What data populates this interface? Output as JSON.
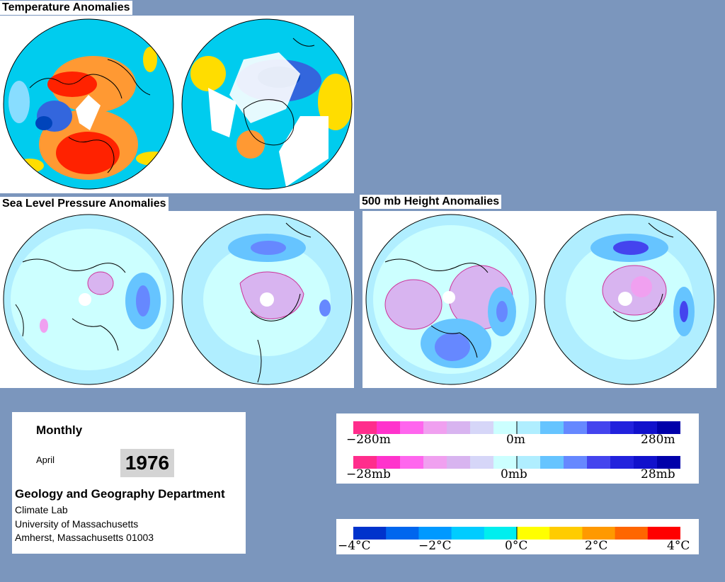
{
  "sections": {
    "temperature": "Temperature Anomalies",
    "slp": "Sea Level Pressure Anomalies",
    "height": "500 mb Height Anomalies"
  },
  "info": {
    "period": "Monthly",
    "month": "April",
    "year": "1976",
    "department": "Geology and Geography Department",
    "lab": "Climate Lab",
    "university": "University of Massachusetts",
    "address": "Amherst, Massachusetts 01003"
  },
  "legends": {
    "height": {
      "min": "−280m",
      "mid": "0m",
      "max": "280m"
    },
    "pressure": {
      "min": "−28mb",
      "mid": "0mb",
      "max": "28mb"
    },
    "temperature": {
      "t1": "−4°C",
      "t2": "−2°C",
      "t3": "0°C",
      "t4": "2°C",
      "t5": "4°C"
    }
  },
  "colors": {
    "background": "#7b96bd",
    "height_pressure_scale": [
      "#ff2d8c",
      "#ff33cc",
      "#ff66ee",
      "#f0a0f0",
      "#d8b4f0",
      "#d6d6f8",
      "#ccffff",
      "#b0eeff",
      "#66c4ff",
      "#6688ff",
      "#4444ee",
      "#2222dd",
      "#1111cc",
      "#0000aa"
    ],
    "temperature_scale": [
      "#0033cc",
      "#0066ee",
      "#0099ff",
      "#00ccff",
      "#00eeee",
      "#ffff00",
      "#ffcc00",
      "#ff9900",
      "#ff6600",
      "#ff0000"
    ]
  }
}
